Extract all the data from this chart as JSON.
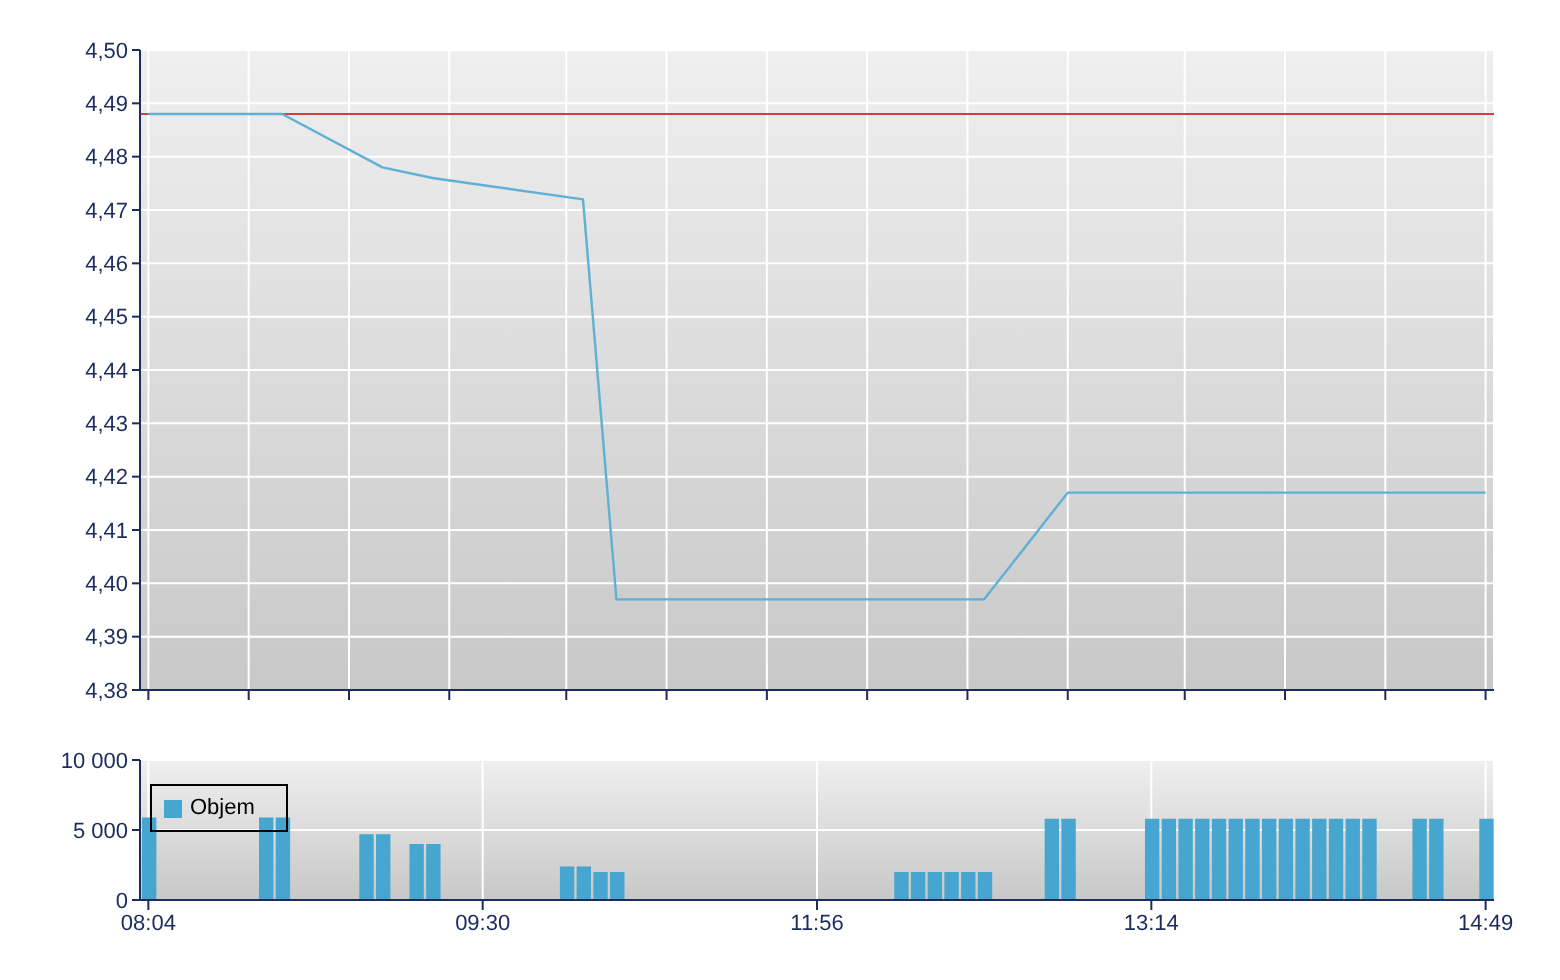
{
  "chart_data": [
    {
      "type": "line",
      "categories": [
        null,
        null,
        null,
        null,
        null,
        null,
        null,
        null,
        null,
        null,
        null,
        null,
        null,
        null,
        null,
        null,
        null,
        null,
        null,
        null,
        null,
        null,
        null,
        null,
        null,
        null,
        null,
        null,
        null,
        null,
        null,
        null,
        null,
        null,
        null,
        null,
        null,
        null,
        null,
        null,
        null,
        null,
        null,
        null,
        null,
        null,
        null,
        null,
        null,
        null,
        null,
        null,
        null,
        null,
        null,
        null,
        null,
        null,
        null,
        null,
        null,
        null,
        null,
        null,
        null,
        null,
        null,
        null,
        null,
        null,
        null,
        null,
        null,
        null,
        null,
        null,
        null,
        null,
        null,
        null,
        null
      ],
      "series": [
        {
          "color": "#5fb0d4",
          "values": [
            4.488,
            null,
            null,
            null,
            null,
            null,
            null,
            null,
            4.488,
            null,
            null,
            null,
            null,
            null,
            4.478,
            null,
            null,
            4.476,
            null,
            null,
            null,
            null,
            null,
            null,
            null,
            null,
            4.472,
            null,
            4.397,
            null,
            null,
            null,
            null,
            null,
            null,
            null,
            null,
            null,
            null,
            null,
            null,
            null,
            null,
            null,
            null,
            null,
            null,
            null,
            null,
            null,
            4.397,
            null,
            null,
            null,
            null,
            4.417,
            null,
            null,
            null,
            null,
            null,
            null,
            null,
            null,
            null,
            null,
            null,
            null,
            null,
            null,
            null,
            null,
            null,
            null,
            null,
            null,
            null,
            null,
            null,
            null,
            4.417
          ]
        }
      ],
      "ylim": [
        4.38,
        4.5
      ],
      "yticks": [
        {
          "value": 4.38,
          "label": "4,38"
        },
        {
          "value": 4.39,
          "label": "4,39"
        },
        {
          "value": 4.4,
          "label": "4,40"
        },
        {
          "value": 4.41,
          "label": "4,41"
        },
        {
          "value": 4.42,
          "label": "4,42"
        },
        {
          "value": 4.43,
          "label": "4,43"
        },
        {
          "value": 4.44,
          "label": "4,44"
        },
        {
          "value": 4.45,
          "label": "4,45"
        },
        {
          "value": 4.46,
          "label": "4,46"
        },
        {
          "value": 4.47,
          "label": "4,47"
        },
        {
          "value": 4.48,
          "label": "4,48"
        },
        {
          "value": 4.49,
          "label": "4,49"
        },
        {
          "value": 4.5,
          "label": "4,50"
        }
      ],
      "ref_lines": [
        {
          "axis": "y",
          "value": 4.488,
          "color": "#d04040"
        }
      ],
      "grid": true,
      "tick_labels": "y",
      "marker": "none"
    },
    {
      "type": "bar",
      "categories": [
        "08:04",
        null,
        null,
        null,
        null,
        null,
        null,
        null,
        null,
        null,
        null,
        null,
        null,
        null,
        null,
        null,
        null,
        null,
        null,
        null,
        "09:30",
        null,
        null,
        null,
        null,
        null,
        null,
        null,
        null,
        null,
        null,
        null,
        null,
        null,
        null,
        null,
        null,
        null,
        null,
        null,
        "11:56",
        null,
        null,
        null,
        null,
        null,
        null,
        null,
        null,
        null,
        null,
        null,
        null,
        null,
        null,
        null,
        null,
        null,
        null,
        null,
        "13:14",
        null,
        null,
        null,
        null,
        null,
        null,
        null,
        null,
        null,
        null,
        null,
        null,
        null,
        null,
        null,
        null,
        null,
        null,
        null,
        "14:49"
      ],
      "series": [
        {
          "name": "Objem",
          "color": "#46a6d0",
          "values": [
            5900,
            null,
            null,
            null,
            null,
            null,
            null,
            5900,
            5900,
            null,
            null,
            null,
            null,
            4700,
            4700,
            null,
            4000,
            4000,
            null,
            null,
            null,
            null,
            null,
            null,
            null,
            2400,
            2400,
            2000,
            2000,
            null,
            null,
            null,
            null,
            null,
            null,
            null,
            null,
            null,
            null,
            null,
            null,
            null,
            null,
            null,
            null,
            2000,
            2000,
            2000,
            2000,
            2000,
            2000,
            null,
            null,
            null,
            5800,
            5800,
            null,
            null,
            null,
            null,
            5800,
            5800,
            5800,
            5800,
            5800,
            5800,
            5800,
            5800,
            5800,
            5800,
            5800,
            5800,
            5800,
            5800,
            null,
            null,
            5800,
            5800,
            null,
            null,
            5800
          ]
        }
      ],
      "ylim": [
        0,
        10000
      ],
      "yticks": [
        0,
        {
          "value": 5000,
          "label": "5 000"
        },
        {
          "value": 10000,
          "label": "10 000"
        }
      ],
      "grid": true,
      "legend": "top left"
    }
  ]
}
